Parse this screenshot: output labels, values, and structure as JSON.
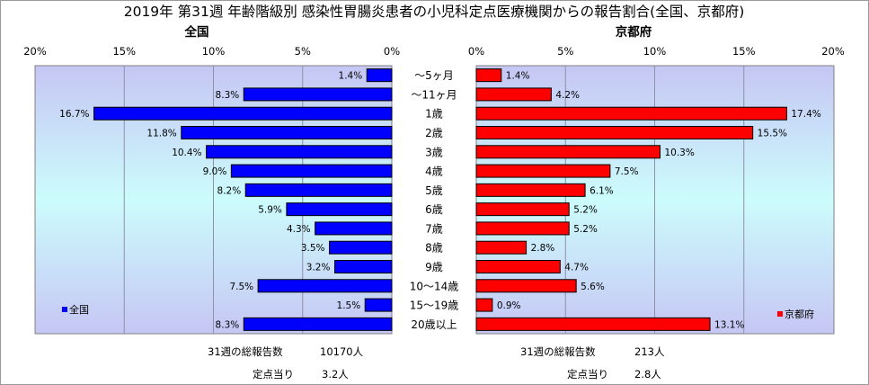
{
  "title": "2019年 第31週 年齢階級別 感染性胃腸炎患者の小児科定点医療機関からの報告割合(全国、京都府)",
  "chart_data": {
    "type": "bar",
    "orientation": "horizontal",
    "layout": "population-pyramid",
    "categories": [
      "～5ヶ月",
      "～11ヶ月",
      "1歳",
      "2歳",
      "3歳",
      "4歳",
      "5歳",
      "6歳",
      "7歳",
      "8歳",
      "9歳",
      "10～14歳",
      "15～19歳",
      "20歳以上"
    ],
    "xlim": [
      0,
      20
    ],
    "x_ticks": [
      "0%",
      "5%",
      "10%",
      "15%",
      "20%"
    ],
    "grid": true,
    "series": [
      {
        "name": "全国",
        "color": "#0000ff",
        "side": "left",
        "legend_position": "bottom-left",
        "values": [
          1.4,
          8.3,
          16.7,
          11.8,
          10.4,
          9.0,
          8.2,
          5.9,
          4.3,
          3.5,
          3.2,
          7.5,
          1.5,
          8.3
        ],
        "labels": [
          "1.4%",
          "8.3%",
          "16.7%",
          "11.8%",
          "10.4%",
          "9.0%",
          "8.2%",
          "5.9%",
          "4.3%",
          "3.5%",
          "3.2%",
          "7.5%",
          "1.5%",
          "8.3%"
        ]
      },
      {
        "name": "京都府",
        "color": "#ff0000",
        "side": "right",
        "legend_position": "bottom-right",
        "values": [
          1.4,
          4.2,
          17.4,
          15.5,
          10.3,
          7.5,
          6.1,
          5.2,
          5.2,
          2.8,
          4.7,
          5.6,
          0.9,
          13.1
        ],
        "labels": [
          "1.4%",
          "4.2%",
          "17.4%",
          "15.5%",
          "10.3%",
          "7.5%",
          "6.1%",
          "5.2%",
          "5.2%",
          "2.8%",
          "4.7%",
          "5.6%",
          "0.9%",
          "13.1%"
        ]
      }
    ]
  },
  "footer": {
    "national": {
      "total_label": "31週の総報告数",
      "total_value": "10170人",
      "per_site_label": "定点当り",
      "per_site_value": "3.2人"
    },
    "kyoto": {
      "total_label": "31週の総報告数",
      "total_value": "213人",
      "per_site_label": "定点当り",
      "per_site_value": "2.8人"
    }
  }
}
